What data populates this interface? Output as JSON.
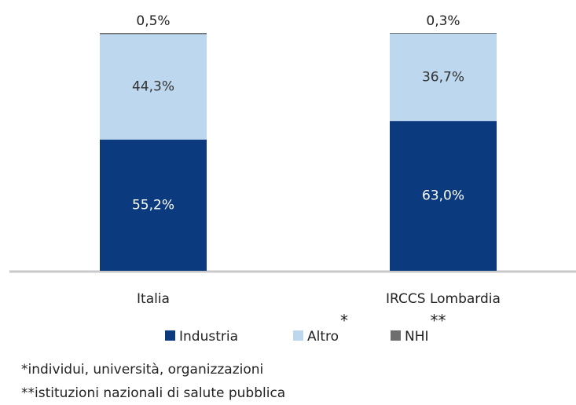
{
  "chart_data": {
    "type": "stacked_bar",
    "categories": [
      "Italia",
      "IRCCS Lombardia"
    ],
    "ylim": [
      0,
      100
    ],
    "series": [
      {
        "name": "Industria",
        "color": "#0b3a7e",
        "label_color": "#ffffff",
        "values": [
          55.2,
          63.0
        ],
        "value_labels": [
          "55,2%",
          "63,0%"
        ]
      },
      {
        "name": "Altro",
        "color": "#bdd7ee",
        "label_color": "#333333",
        "marker": "*",
        "values": [
          44.3,
          36.7
        ],
        "value_labels": [
          "44,3%",
          "36,7%"
        ]
      },
      {
        "name": "NHI",
        "color": "#6e6e6e",
        "label_color": "#333333",
        "marker": "**",
        "values": [
          0.5,
          0.3
        ],
        "value_labels": [
          "0,5%",
          "0,3%"
        ]
      }
    ],
    "notes": [
      "*individui, università, organizzazioni",
      "**istituzioni nazionali di salute pubblica"
    ]
  }
}
